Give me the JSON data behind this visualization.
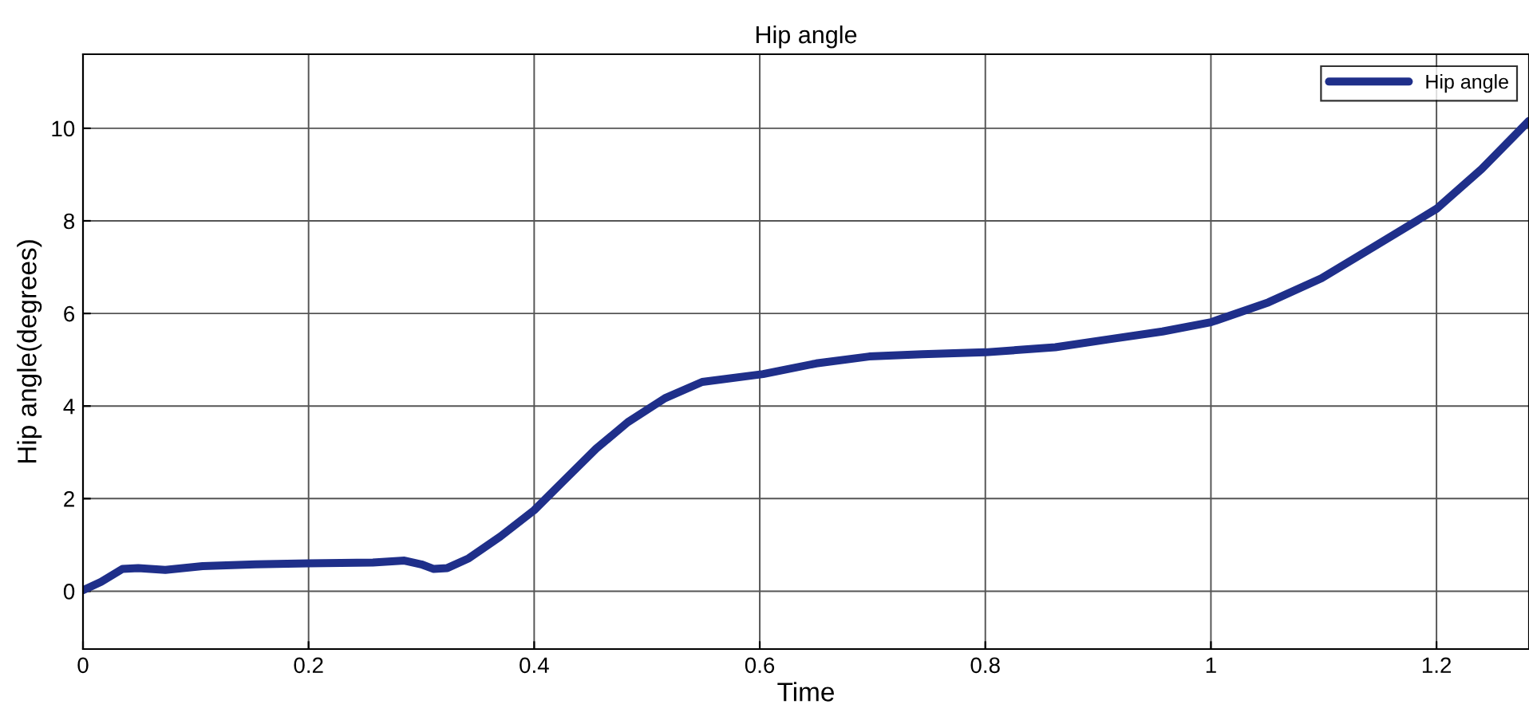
{
  "chart_data": {
    "type": "line",
    "title": "Hip angle",
    "xlabel": "Time",
    "ylabel": "Hip angle(degrees)",
    "x": [
      0,
      0.016,
      0.035,
      0.049,
      0.073,
      0.106,
      0.153,
      0.2,
      0.257,
      0.285,
      0.3,
      0.311,
      0.323,
      0.342,
      0.37,
      0.4,
      0.426,
      0.455,
      0.483,
      0.516,
      0.549,
      0.603,
      0.65,
      0.697,
      0.744,
      0.8,
      0.862,
      0.909,
      0.957,
      1.0,
      1.051,
      1.098,
      1.145,
      1.2,
      1.24,
      1.282
    ],
    "series": [
      {
        "name": "Hip angle",
        "color": "#1f2f8a",
        "values": [
          0.02,
          0.2,
          0.48,
          0.5,
          0.46,
          0.54,
          0.58,
          0.6,
          0.62,
          0.66,
          0.58,
          0.48,
          0.5,
          0.71,
          1.18,
          1.75,
          2.38,
          3.08,
          3.65,
          4.17,
          4.52,
          4.69,
          4.92,
          5.07,
          5.12,
          5.16,
          5.27,
          5.44,
          5.61,
          5.81,
          6.24,
          6.76,
          7.45,
          8.26,
          9.12,
          10.16
        ]
      }
    ],
    "xlim": [
      0,
      1.282
    ],
    "ylim": [
      -1.25,
      11.6
    ],
    "xticks": [
      0,
      0.2,
      0.4,
      0.6,
      0.8,
      1,
      1.2
    ],
    "yticks": [
      0,
      2,
      4,
      6,
      8,
      10
    ],
    "grid": true,
    "legend": "top right",
    "line_style": "solid",
    "marker": "none"
  }
}
